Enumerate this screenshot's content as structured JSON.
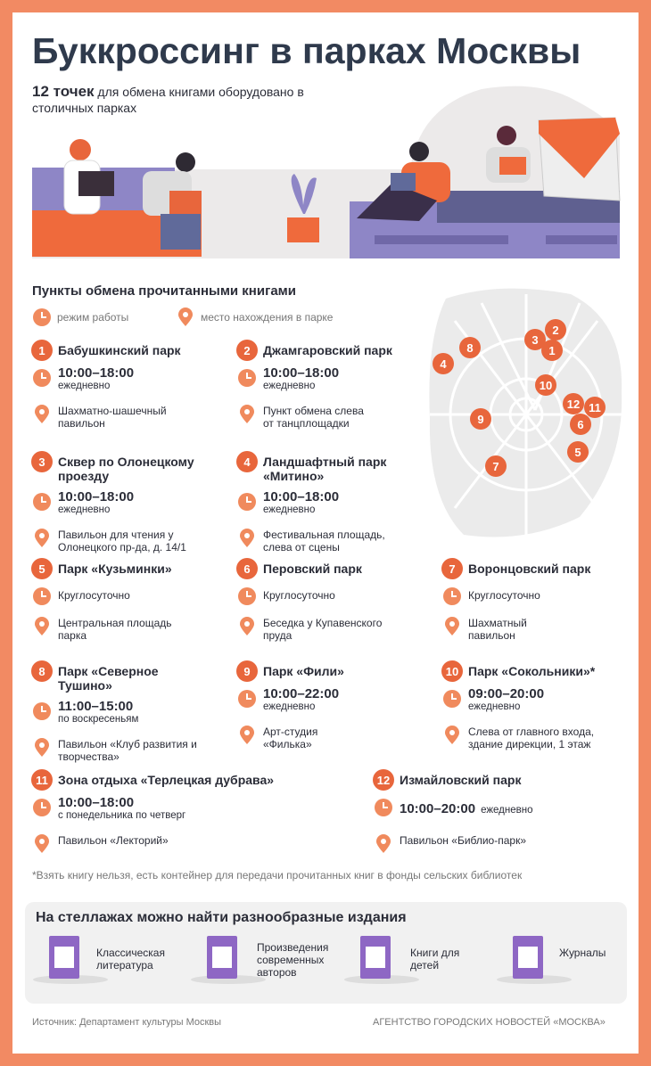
{
  "header": {
    "title": "Буккроссинг в парках Москвы",
    "lead_bold": "12 точек",
    "lead": "для обмена книгами оборудовано в столичных парках"
  },
  "section_title": "Пункты обмена прочитанными книгами",
  "legend": {
    "hours": "режим работы",
    "place": "место нахождения в парке"
  },
  "parks": [
    {
      "number": "1",
      "name": "Бабушкинский парк",
      "hours": "10:00–18:00",
      "days": "ежедневно",
      "place": "Шахматно-шашечный павильон"
    },
    {
      "number": "2",
      "name": "Джамгаровский парк",
      "hours": "10:00–18:00",
      "days": "ежедневно",
      "place": "Пункт обмена слева от танцплощадки"
    },
    {
      "number": "3",
      "name": "Сквер по Олонецкому проезду",
      "hours": "10:00–18:00",
      "days": "ежедневно",
      "place": "Павильон для чтения у Олонецкого пр-да, д. 14/1"
    },
    {
      "number": "4",
      "name": "Ландшафтный парк «Митино»",
      "hours": "10:00–18:00",
      "days": "ежедневно",
      "place": "Фестивальная площадь, слева от сцены"
    },
    {
      "number": "5",
      "name": "Парк «Кузьминки»",
      "hours": "Круглосуточно",
      "place": "Центральная площадь парка"
    },
    {
      "number": "6",
      "name": "Перовский парк",
      "hours": "Круглосуточно",
      "place": "Беседка у Купавенского пруда"
    },
    {
      "number": "7",
      "name": "Воронцовский парк",
      "hours": "Круглосуточно",
      "place": "Шахматный павильон"
    },
    {
      "number": "8",
      "name": "Парк «Северное Тушино»",
      "hours": "11:00–15:00",
      "days": "по воскресеньям",
      "place": "Павильон «Клуб развития и творчества»"
    },
    {
      "number": "9",
      "name": "Парк «Фили»",
      "hours": "10:00–22:00",
      "days": "ежедневно",
      "place": "Арт-студия «Филька»"
    },
    {
      "number": "10",
      "name": "Парк «Сокольники»*",
      "hours": "09:00–20:00",
      "days": "ежедневно",
      "place": "Слева от главного входа, здание дирекции, 1 этаж"
    },
    {
      "number": "11",
      "name": "Зона отдыха «Терлецкая дубрава»",
      "hours": "10:00–18:00",
      "days": "с понедельника по четверг",
      "place": "Павильон «Лекторий»"
    },
    {
      "number": "12",
      "name": "Измайловский парк",
      "hours": "10:00–20:00",
      "days": "ежедневно",
      "place": "Павильон «Библио-парк»"
    }
  ],
  "footnote": "*Взять книгу нельзя, есть контейнер для передачи прочитанных книг в фонды сельских библиотек",
  "editions": {
    "title": "На стеллажах можно найти разнообразные издания",
    "items": [
      "Классическая литература",
      "Произведения современных авторов",
      "Книги для детей",
      "Журналы"
    ]
  },
  "footer": {
    "source": "Источник: Департамент культуры Москвы",
    "agency": "АГЕНТСТВО ГОРОДСКИХ НОВОСТЕЙ «МОСКВА»"
  }
}
